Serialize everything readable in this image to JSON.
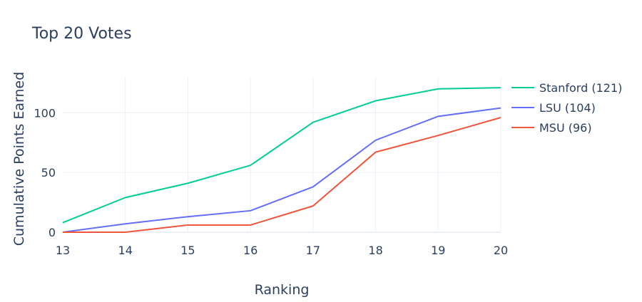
{
  "chart_data": {
    "type": "line",
    "title": "Top 20 Votes",
    "xlabel": "Ranking",
    "ylabel": "Cumulative Points Earned",
    "x": [
      13,
      14,
      15,
      16,
      17,
      18,
      19,
      20
    ],
    "xlim": [
      13,
      20
    ],
    "ylim": [
      0,
      130
    ],
    "yticks": [
      0,
      50,
      100
    ],
    "grid": true,
    "legend_position": "right",
    "series": [
      {
        "name": "Stanford (121)",
        "color": "#00cc96",
        "values": [
          8,
          29,
          41,
          56,
          92,
          110,
          120,
          121
        ]
      },
      {
        "name": "LSU (104)",
        "color": "#636efa",
        "values": [
          0,
          7,
          13,
          18,
          38,
          77,
          97,
          104
        ]
      },
      {
        "name": "MSU (96)",
        "color": "#ef553b",
        "values": [
          0,
          0,
          6,
          6,
          22,
          67,
          81,
          96
        ]
      }
    ]
  }
}
